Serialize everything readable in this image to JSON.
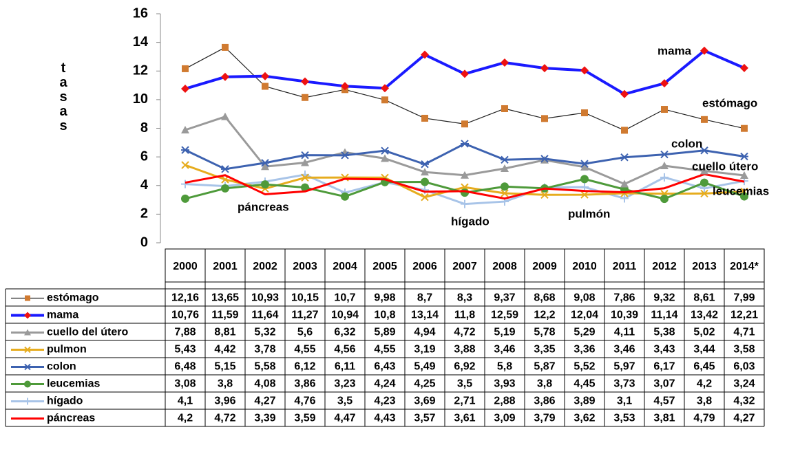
{
  "chart_data": {
    "type": "line",
    "y_label": "tasas",
    "categories": [
      "2000",
      "2001",
      "2002",
      "2003",
      "2004",
      "2005",
      "2006",
      "2007",
      "2008",
      "2009",
      "2010",
      "2011",
      "2012",
      "2013",
      "2014*"
    ],
    "ylim": [
      0,
      16
    ],
    "yticks": [
      0,
      2,
      4,
      6,
      8,
      10,
      12,
      14,
      16
    ],
    "series": [
      {
        "name": "estómago",
        "color": "#222222",
        "marker_color": "#d07a30",
        "marker": "square",
        "width": 1.2,
        "values": [
          12.16,
          13.65,
          10.93,
          10.15,
          10.7,
          9.98,
          8.7,
          8.3,
          9.37,
          8.68,
          9.08,
          7.86,
          9.32,
          8.61,
          7.99
        ],
        "value_labels": [
          "12,16",
          "13,65",
          "10,93",
          "10,15",
          "10,7",
          "9,98",
          "8,7",
          "8,3",
          "9,37",
          "8,68",
          "9,08",
          "7,86",
          "9,32",
          "8,61",
          "7,99"
        ]
      },
      {
        "name": "mama",
        "color": "#1a1aff",
        "marker_color": "#ee1111",
        "marker": "diamond",
        "width": 4,
        "values": [
          10.76,
          11.59,
          11.64,
          11.27,
          10.94,
          10.8,
          13.14,
          11.8,
          12.59,
          12.2,
          12.04,
          10.39,
          11.14,
          13.42,
          12.21
        ],
        "value_labels": [
          "10,76",
          "11,59",
          "11,64",
          "11,27",
          "10,94",
          "10,8",
          "13,14",
          "11,8",
          "12,59",
          "12,2",
          "12,04",
          "10,39",
          "11,14",
          "13,42",
          "12,21"
        ]
      },
      {
        "name": "cuello del útero",
        "color": "#9a9a9a",
        "marker_color": "#9a9a9a",
        "marker": "triangle",
        "width": 3,
        "values": [
          7.88,
          8.81,
          5.32,
          5.6,
          6.32,
          5.89,
          4.94,
          4.72,
          5.19,
          5.78,
          5.29,
          4.11,
          5.38,
          5.02,
          4.71
        ],
        "value_labels": [
          "7,88",
          "8,81",
          "5,32",
          "5,6",
          "6,32",
          "5,89",
          "4,94",
          "4,72",
          "5,19",
          "5,78",
          "5,29",
          "4,11",
          "5,38",
          "5,02",
          "4,71"
        ]
      },
      {
        "name": "pulmon",
        "color": "#e6ac1e",
        "marker_color": "#e6ac1e",
        "marker": "x",
        "width": 3,
        "values": [
          5.43,
          4.42,
          3.78,
          4.55,
          4.56,
          4.55,
          3.19,
          3.88,
          3.46,
          3.35,
          3.36,
          3.46,
          3.43,
          3.44,
          3.58
        ],
        "value_labels": [
          "5,43",
          "4,42",
          "3,78",
          "4,55",
          "4,56",
          "4,55",
          "3,19",
          "3,88",
          "3,46",
          "3,35",
          "3,36",
          "3,46",
          "3,43",
          "3,44",
          "3,58"
        ]
      },
      {
        "name": "colon",
        "color": "#3d62b0",
        "marker_color": "#3d62b0",
        "marker": "star",
        "width": 3,
        "values": [
          6.48,
          5.15,
          5.58,
          6.12,
          6.11,
          6.43,
          5.49,
          6.92,
          5.8,
          5.87,
          5.52,
          5.97,
          6.17,
          6.45,
          6.03
        ],
        "value_labels": [
          "6,48",
          "5,15",
          "5,58",
          "6,12",
          "6,11",
          "6,43",
          "5,49",
          "6,92",
          "5,8",
          "5,87",
          "5,52",
          "5,97",
          "6,17",
          "6,45",
          "6,03"
        ]
      },
      {
        "name": "leucemias",
        "color": "#4e9a3a",
        "marker_color": "#4e9a3a",
        "marker": "circle",
        "width": 3,
        "values": [
          3.08,
          3.8,
          4.08,
          3.86,
          3.23,
          4.24,
          4.25,
          3.5,
          3.93,
          3.8,
          4.45,
          3.73,
          3.07,
          4.2,
          3.24
        ],
        "value_labels": [
          "3,08",
          "3,8",
          "4,08",
          "3,86",
          "3,23",
          "4,24",
          "4,25",
          "3,5",
          "3,93",
          "3,8",
          "4,45",
          "3,73",
          "3,07",
          "4,2",
          "3,24"
        ]
      },
      {
        "name": "hígado",
        "color": "#a8c4e8",
        "marker_color": "#a8c4e8",
        "marker": "plus",
        "width": 3,
        "values": [
          4.1,
          3.96,
          4.27,
          4.76,
          3.5,
          4.23,
          3.69,
          2.71,
          2.88,
          3.86,
          3.89,
          3.1,
          4.57,
          3.8,
          4.32
        ],
        "value_labels": [
          "4,1",
          "3,96",
          "4,27",
          "4,76",
          "3,5",
          "4,23",
          "3,69",
          "2,71",
          "2,88",
          "3,86",
          "3,89",
          "3,1",
          "4,57",
          "3,8",
          "4,32"
        ]
      },
      {
        "name": "páncreas",
        "color": "#ff0000",
        "marker_color": "#ff0000",
        "marker": "none",
        "width": 3,
        "values": [
          4.2,
          4.72,
          3.39,
          3.59,
          4.47,
          4.43,
          3.57,
          3.61,
          3.09,
          3.79,
          3.62,
          3.53,
          3.81,
          4.79,
          4.27
        ],
        "value_labels": [
          "4,2",
          "4,72",
          "3,39",
          "3,59",
          "4,47",
          "4,43",
          "3,57",
          "3,61",
          "3,09",
          "3,79",
          "3,62",
          "3,53",
          "3,81",
          "4,79",
          "4,27"
        ]
      }
    ],
    "annotations": [
      "mama",
      "estómago",
      "colon",
      "cuello útero",
      "leucemias",
      "páncreas",
      "hígado",
      "pulmón"
    ]
  }
}
